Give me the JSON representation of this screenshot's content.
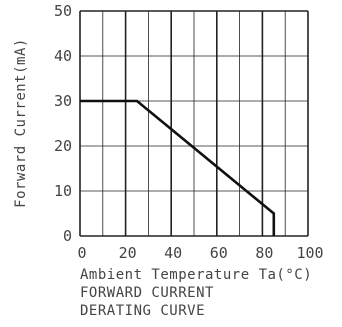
{
  "chart_data": {
    "type": "line",
    "title": "",
    "xlabel": "Ambient Temperature Ta(°C)",
    "ylabel": "Forward Current(mA)",
    "xlim": [
      0,
      100
    ],
    "ylim": [
      0,
      50
    ],
    "x_ticks": [
      "0",
      "20",
      "40",
      "60",
      "80",
      "100"
    ],
    "y_ticks": [
      "0",
      "10",
      "20",
      "30",
      "40",
      "50"
    ],
    "grid": true,
    "series": [
      {
        "x": [
          0,
          25,
          85,
          85
        ],
        "y": [
          30,
          30,
          5,
          0
        ]
      }
    ],
    "caption_lines": [
      "FORWARD CURRENT",
      "DERATING CURVE"
    ],
    "colors": {
      "line": "#111111",
      "grid": "#222222",
      "text": "#444444"
    }
  }
}
